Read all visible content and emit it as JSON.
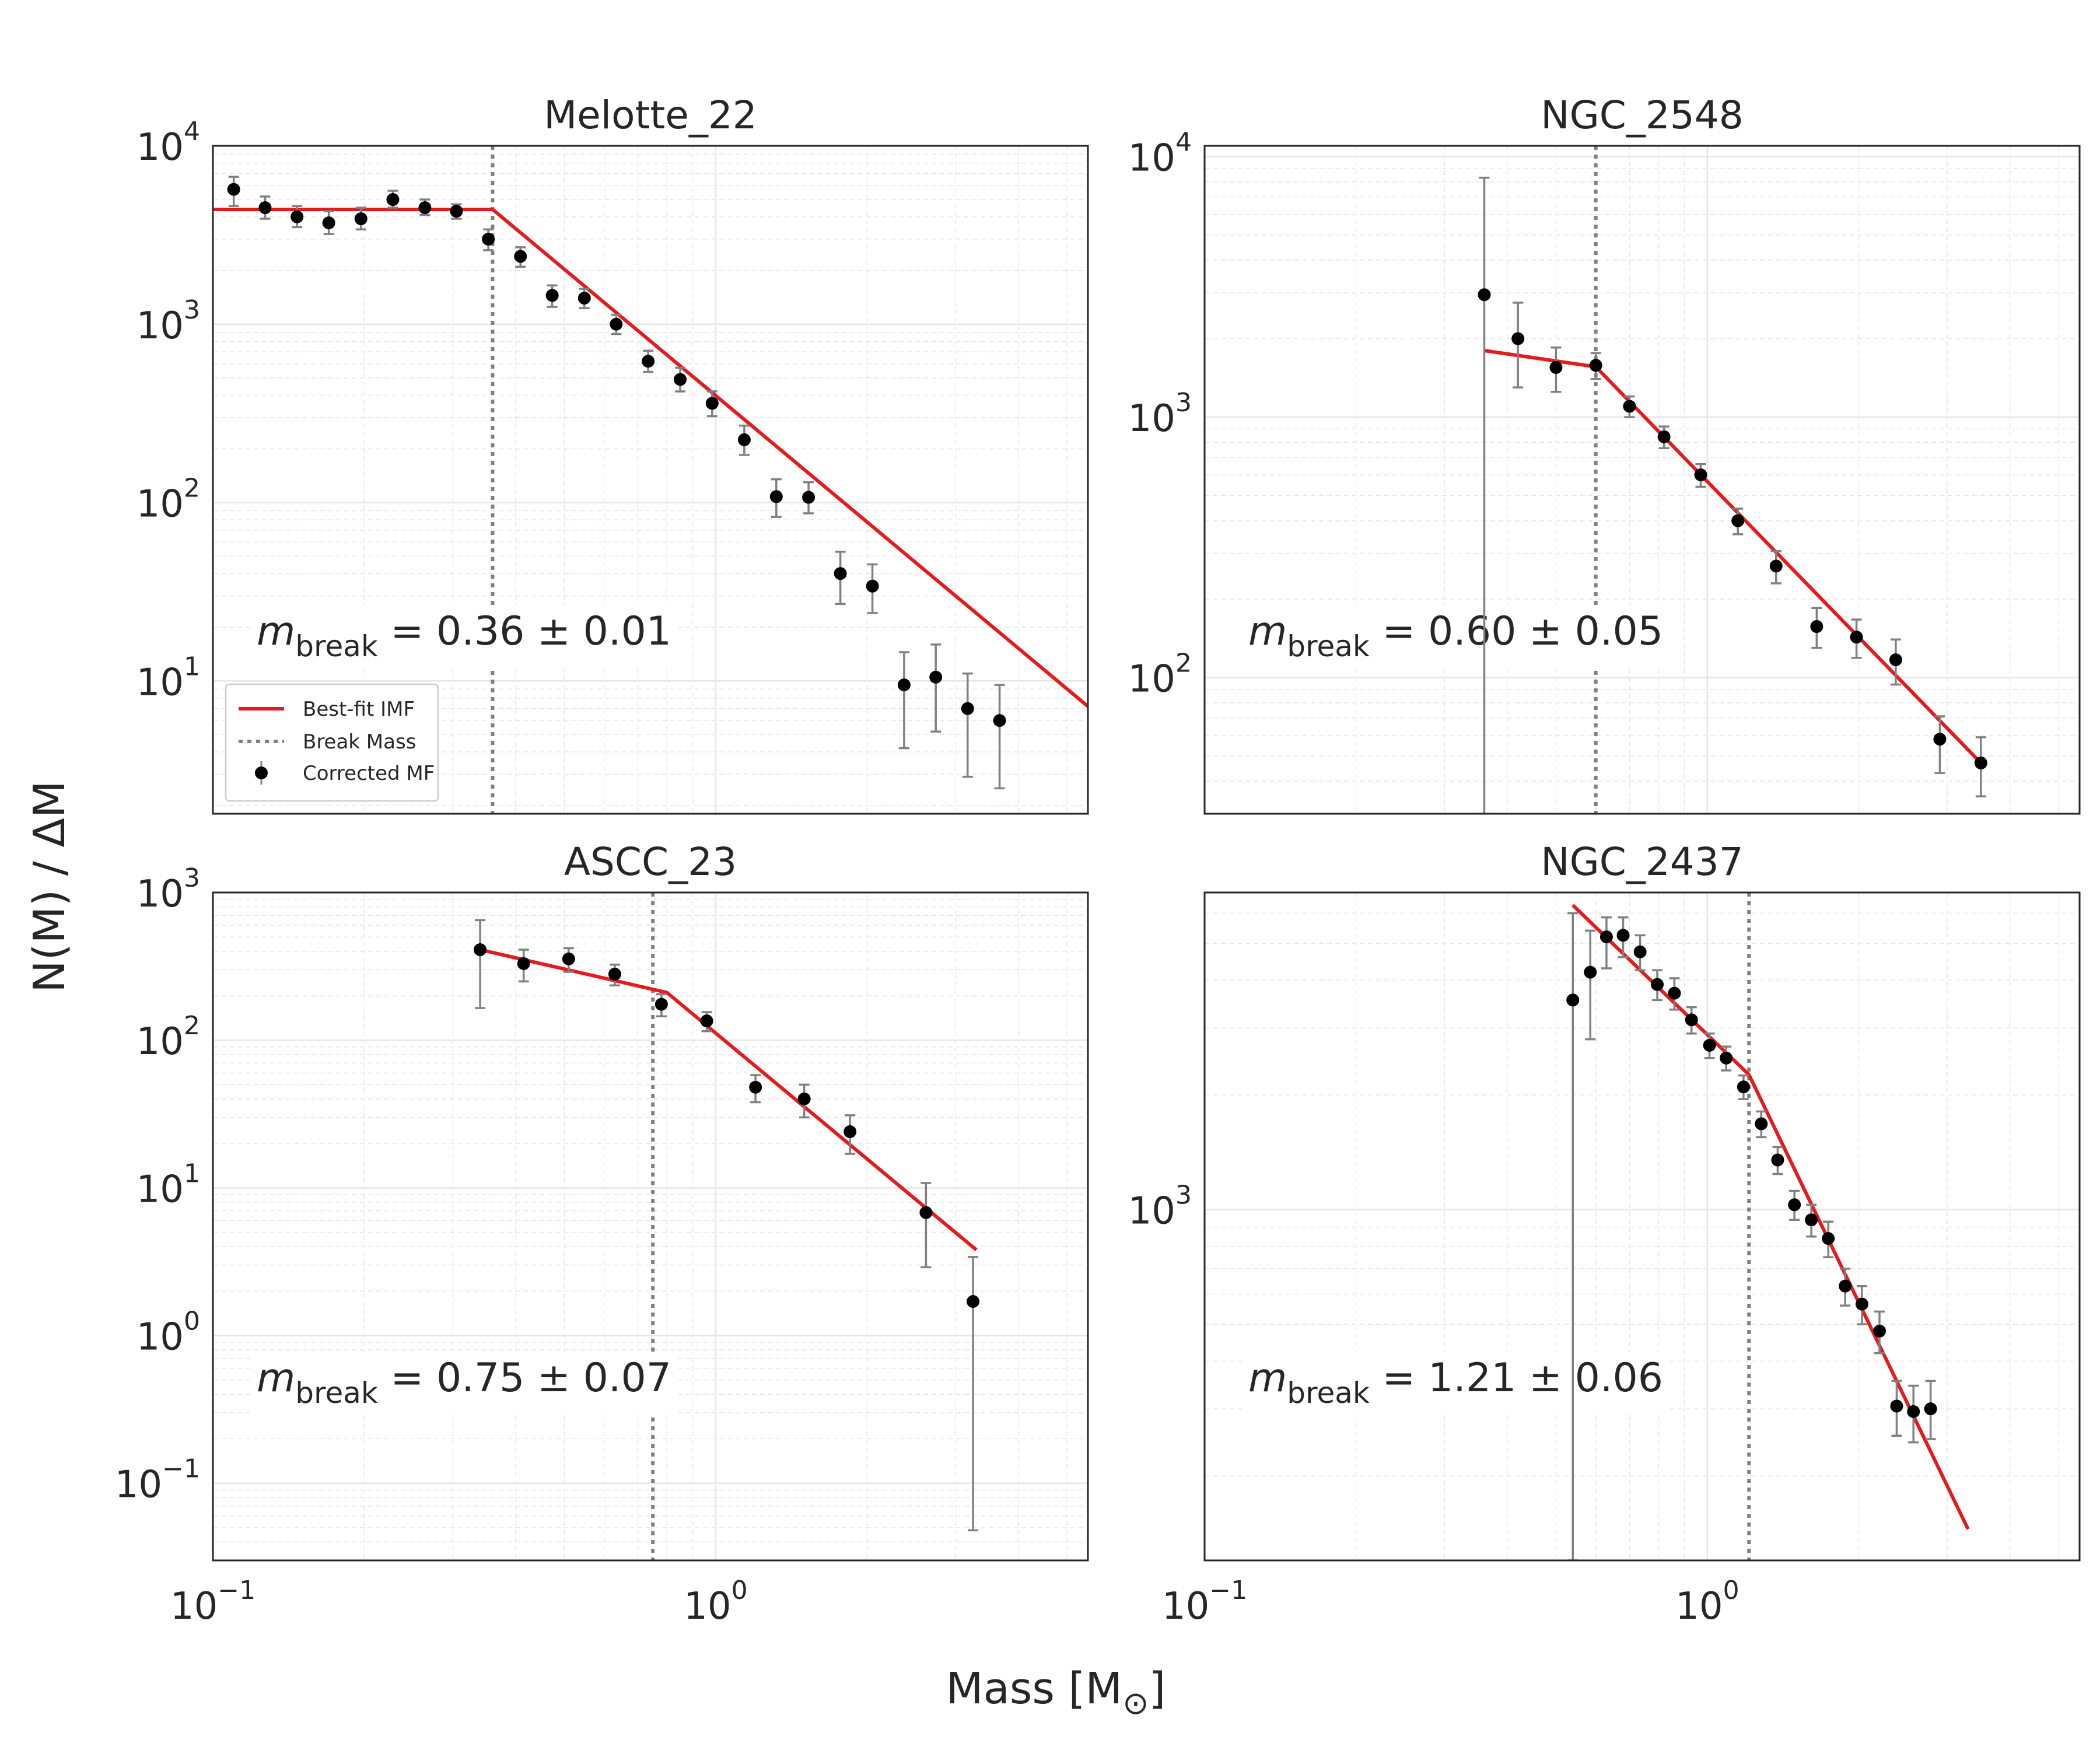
{
  "figure": {
    "ylabel": "N(M) / ΔM",
    "xlabel_main": "Mass [M",
    "xlabel_sub": "⊙",
    "xlabel_close": "]"
  },
  "legend": {
    "best_fit": "Best-fit IMF",
    "break_mass": "Break Mass",
    "corrected": "Corrected MF"
  },
  "colors": {
    "fit": "#e41a1c",
    "break": "#808080",
    "points": "#000000",
    "errorbars": "#808080",
    "grid": "#e6e6e6",
    "frame": "#262626"
  },
  "chart_data": [
    {
      "type": "scatter",
      "title": "Melotte_22",
      "xscale": "log",
      "yscale": "log",
      "xlim": [
        0.1,
        5.5
      ],
      "ylim": [
        1.8,
        10000
      ],
      "yticks": [
        {
          "v": 10000,
          "base": "10",
          "exp": "4"
        },
        {
          "v": 1000,
          "base": "10",
          "exp": "3"
        },
        {
          "v": 100,
          "base": "10",
          "exp": "2"
        },
        {
          "v": 10,
          "base": "10",
          "exp": "1"
        }
      ],
      "show_xticklabels": false,
      "legend": "lower-left",
      "break_mass": 0.36,
      "annotation": {
        "symbol": "m",
        "sub": "break",
        "text": " = 0.36 ± 0.01"
      },
      "fit": [
        [
          0.1,
          4400
        ],
        [
          0.36,
          4400
        ],
        [
          5.5,
          7.2
        ]
      ],
      "points": [
        {
          "x": 0.11,
          "y": 5700,
          "lo": 4600,
          "hi": 6700
        },
        {
          "x": 0.127,
          "y": 4500,
          "lo": 3900,
          "hi": 5200
        },
        {
          "x": 0.147,
          "y": 4000,
          "lo": 3500,
          "hi": 4600
        },
        {
          "x": 0.17,
          "y": 3700,
          "lo": 3200,
          "hi": 4300
        },
        {
          "x": 0.197,
          "y": 3900,
          "lo": 3400,
          "hi": 4500
        },
        {
          "x": 0.228,
          "y": 5000,
          "lo": 4500,
          "hi": 5600
        },
        {
          "x": 0.264,
          "y": 4500,
          "lo": 4100,
          "hi": 5000
        },
        {
          "x": 0.305,
          "y": 4300,
          "lo": 3900,
          "hi": 4700
        },
        {
          "x": 0.353,
          "y": 3000,
          "lo": 2600,
          "hi": 3400
        },
        {
          "x": 0.409,
          "y": 2400,
          "lo": 2100,
          "hi": 2700
        },
        {
          "x": 0.473,
          "y": 1450,
          "lo": 1250,
          "hi": 1650
        },
        {
          "x": 0.548,
          "y": 1400,
          "lo": 1230,
          "hi": 1580
        },
        {
          "x": 0.634,
          "y": 1000,
          "lo": 880,
          "hi": 1130
        },
        {
          "x": 0.734,
          "y": 620,
          "lo": 540,
          "hi": 710
        },
        {
          "x": 0.85,
          "y": 490,
          "lo": 420,
          "hi": 570
        },
        {
          "x": 0.984,
          "y": 360,
          "lo": 305,
          "hi": 420
        },
        {
          "x": 1.14,
          "y": 225,
          "lo": 185,
          "hi": 270
        },
        {
          "x": 1.32,
          "y": 108,
          "lo": 83,
          "hi": 135
        },
        {
          "x": 1.53,
          "y": 107,
          "lo": 87,
          "hi": 130
        },
        {
          "x": 1.77,
          "y": 40,
          "lo": 27,
          "hi": 53
        },
        {
          "x": 2.05,
          "y": 34,
          "lo": 24,
          "hi": 45
        },
        {
          "x": 2.37,
          "y": 9.5,
          "lo": 4.2,
          "hi": 14.5
        },
        {
          "x": 2.74,
          "y": 10.5,
          "lo": 5.2,
          "hi": 16
        },
        {
          "x": 3.17,
          "y": 7,
          "lo": 2.9,
          "hi": 11
        },
        {
          "x": 3.67,
          "y": 6,
          "lo": 2.5,
          "hi": 9.5
        }
      ]
    },
    {
      "type": "scatter",
      "title": "NGC_2548",
      "xscale": "log",
      "yscale": "log",
      "xlim": [
        0.1,
        5.5
      ],
      "ylim": [
        30,
        11000
      ],
      "yticks": [
        {
          "v": 10000,
          "base": "10",
          "exp": "4"
        },
        {
          "v": 1000,
          "base": "10",
          "exp": "3"
        },
        {
          "v": 100,
          "base": "10",
          "exp": "2"
        }
      ],
      "show_xticklabels": false,
      "legend": "none",
      "break_mass": 0.6,
      "annotation": {
        "symbol": "m",
        "sub": "break",
        "text": " = 0.60 ± 0.05"
      },
      "fit": [
        [
          0.36,
          1800
        ],
        [
          0.6,
          1560
        ],
        [
          3.5,
          47
        ]
      ],
      "points": [
        {
          "x": 0.36,
          "y": 2950,
          "lo": 30,
          "hi": 8300
        },
        {
          "x": 0.42,
          "y": 2000,
          "lo": 1300,
          "hi": 2750
        },
        {
          "x": 0.5,
          "y": 1550,
          "lo": 1250,
          "hi": 1850
        },
        {
          "x": 0.6,
          "y": 1580,
          "lo": 1400,
          "hi": 1760
        },
        {
          "x": 0.7,
          "y": 1100,
          "lo": 1000,
          "hi": 1200
        },
        {
          "x": 0.82,
          "y": 840,
          "lo": 760,
          "hi": 920
        },
        {
          "x": 0.97,
          "y": 600,
          "lo": 540,
          "hi": 660
        },
        {
          "x": 1.15,
          "y": 400,
          "lo": 355,
          "hi": 445
        },
        {
          "x": 1.37,
          "y": 268,
          "lo": 230,
          "hi": 306
        },
        {
          "x": 1.65,
          "y": 157,
          "lo": 130,
          "hi": 185
        },
        {
          "x": 1.98,
          "y": 143,
          "lo": 119,
          "hi": 167
        },
        {
          "x": 2.37,
          "y": 117,
          "lo": 94,
          "hi": 140
        },
        {
          "x": 2.9,
          "y": 58,
          "lo": 43,
          "hi": 71
        },
        {
          "x": 3.5,
          "y": 47,
          "lo": 35,
          "hi": 59
        }
      ]
    },
    {
      "type": "scatter",
      "title": "ASCC_23",
      "xscale": "log",
      "yscale": "log",
      "xlim": [
        0.1,
        5.5
      ],
      "ylim": [
        0.03,
        1000
      ],
      "yticks": [
        {
          "v": 1000,
          "base": "10",
          "exp": "3"
        },
        {
          "v": 100,
          "base": "10",
          "exp": "2"
        },
        {
          "v": 10,
          "base": "10",
          "exp": "1"
        },
        {
          "v": 1,
          "base": "10",
          "exp": "0"
        },
        {
          "v": 0.1,
          "base": "10",
          "exp": "−1"
        }
      ],
      "xticks": [
        {
          "v": 0.1,
          "base": "10",
          "exp": "−1"
        },
        {
          "v": 1,
          "base": "10",
          "exp": "0"
        }
      ],
      "show_xticklabels": true,
      "legend": "none",
      "break_mass": 0.75,
      "annotation": {
        "symbol": "m",
        "sub": "break",
        "text": " = 0.75 ± 0.07"
      },
      "fit": [
        [
          0.34,
          410
        ],
        [
          0.8,
          210
        ],
        [
          3.3,
          3.8
        ]
      ],
      "points": [
        {
          "x": 0.34,
          "y": 410,
          "lo": 165,
          "hi": 650
        },
        {
          "x": 0.415,
          "y": 330,
          "lo": 250,
          "hi": 410
        },
        {
          "x": 0.51,
          "y": 355,
          "lo": 290,
          "hi": 420
        },
        {
          "x": 0.63,
          "y": 280,
          "lo": 235,
          "hi": 325
        },
        {
          "x": 0.78,
          "y": 175,
          "lo": 145,
          "hi": 205
        },
        {
          "x": 0.96,
          "y": 135,
          "lo": 115,
          "hi": 155
        },
        {
          "x": 1.2,
          "y": 48,
          "lo": 38,
          "hi": 58
        },
        {
          "x": 1.5,
          "y": 40,
          "lo": 30,
          "hi": 50
        },
        {
          "x": 1.85,
          "y": 24,
          "lo": 17,
          "hi": 31
        },
        {
          "x": 2.62,
          "y": 6.8,
          "lo": 2.9,
          "hi": 10.8
        },
        {
          "x": 3.25,
          "y": 1.7,
          "lo": 0.048,
          "hi": 3.4
        }
      ]
    },
    {
      "type": "scatter",
      "title": "NGC_2437",
      "xscale": "log",
      "yscale": "log",
      "xlim": [
        0.1,
        5.5
      ],
      "ylim": [
        120,
        6800
      ],
      "yticks": [
        {
          "v": 1000,
          "base": "10",
          "exp": "3"
        }
      ],
      "xticks": [
        {
          "v": 0.1,
          "base": "10",
          "exp": "−1"
        },
        {
          "v": 1,
          "base": "10",
          "exp": "0"
        }
      ],
      "show_xticklabels": true,
      "legend": "none",
      "break_mass": 1.21,
      "annotation": {
        "symbol": "m",
        "sub": "break",
        "text": " = 1.21 ± 0.06"
      },
      "fit": [
        [
          0.54,
          6300
        ],
        [
          1.21,
          2260
        ],
        [
          3.3,
          145
        ]
      ],
      "points": [
        {
          "x": 0.54,
          "y": 3550,
          "lo": 120,
          "hi": 6000
        },
        {
          "x": 0.585,
          "y": 4200,
          "lo": 2800,
          "hi": 5400
        },
        {
          "x": 0.63,
          "y": 5200,
          "lo": 4300,
          "hi": 5850
        },
        {
          "x": 0.68,
          "y": 5250,
          "lo": 4600,
          "hi": 5850
        },
        {
          "x": 0.735,
          "y": 4750,
          "lo": 4250,
          "hi": 5250
        },
        {
          "x": 0.795,
          "y": 3900,
          "lo": 3550,
          "hi": 4250
        },
        {
          "x": 0.86,
          "y": 3700,
          "lo": 3350,
          "hi": 4050
        },
        {
          "x": 0.93,
          "y": 3150,
          "lo": 2900,
          "hi": 3400
        },
        {
          "x": 1.01,
          "y": 2700,
          "lo": 2500,
          "hi": 2900
        },
        {
          "x": 1.09,
          "y": 2500,
          "lo": 2320,
          "hi": 2680
        },
        {
          "x": 1.18,
          "y": 2100,
          "lo": 1950,
          "hi": 2250
        },
        {
          "x": 1.28,
          "y": 1680,
          "lo": 1550,
          "hi": 1810
        },
        {
          "x": 1.38,
          "y": 1350,
          "lo": 1240,
          "hi": 1460
        },
        {
          "x": 1.49,
          "y": 1030,
          "lo": 940,
          "hi": 1120
        },
        {
          "x": 1.61,
          "y": 940,
          "lo": 850,
          "hi": 1030
        },
        {
          "x": 1.74,
          "y": 840,
          "lo": 750,
          "hi": 930
        },
        {
          "x": 1.88,
          "y": 630,
          "lo": 560,
          "hi": 700
        },
        {
          "x": 2.03,
          "y": 565,
          "lo": 500,
          "hi": 630
        },
        {
          "x": 2.2,
          "y": 480,
          "lo": 420,
          "hi": 540
        },
        {
          "x": 2.38,
          "y": 305,
          "lo": 255,
          "hi": 355
        },
        {
          "x": 2.57,
          "y": 295,
          "lo": 245,
          "hi": 345
        },
        {
          "x": 2.78,
          "y": 300,
          "lo": 250,
          "hi": 355
        }
      ]
    }
  ]
}
